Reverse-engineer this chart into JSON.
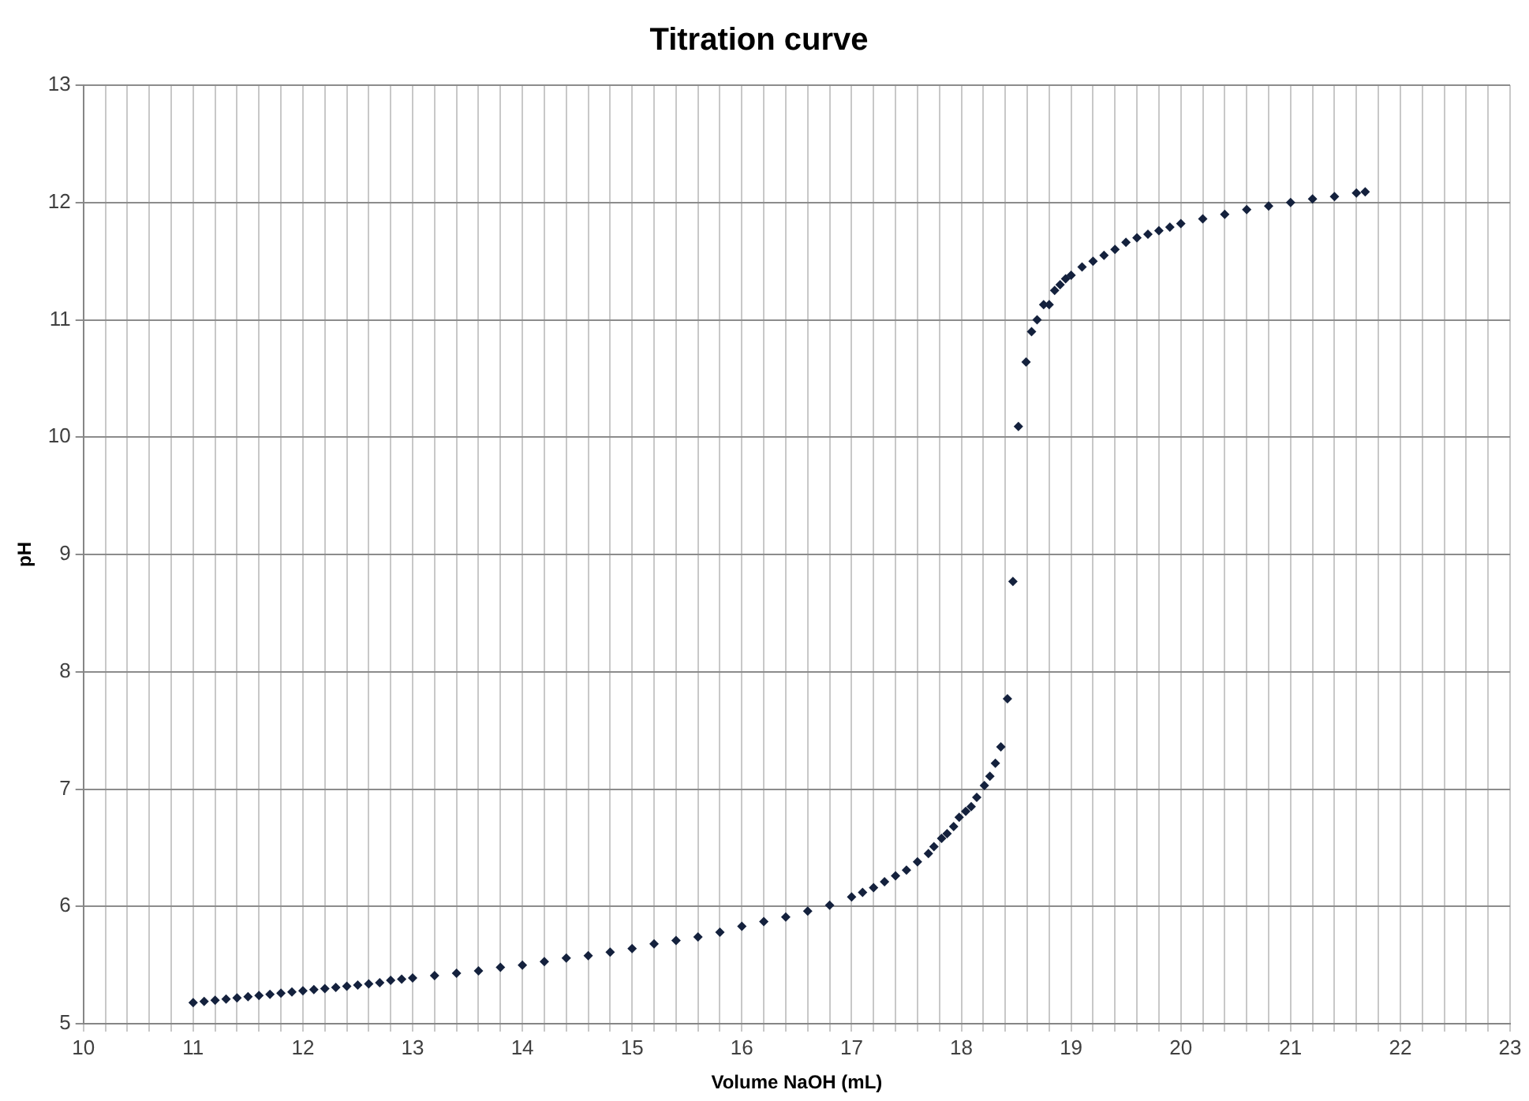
{
  "chart_data": {
    "type": "scatter",
    "title": "Titration curve",
    "xlabel": "Volume NaOH (mL)",
    "ylabel": "pH",
    "xlim": [
      10,
      23
    ],
    "ylim": [
      5,
      13
    ],
    "xticks": [
      10,
      {
        "value": 10.2,
        "label": null
      },
      {
        "value": 10.4,
        "label": null
      },
      {
        "value": 10.6,
        "label": null
      },
      {
        "value": 10.8,
        "label": null
      },
      11,
      {
        "value": 11.2,
        "label": null
      },
      {
        "value": 11.4,
        "label": null
      },
      {
        "value": 11.6,
        "label": null
      },
      {
        "value": 11.8,
        "label": null
      },
      12,
      {
        "value": 12.2,
        "label": null
      },
      {
        "value": 12.4,
        "label": null
      },
      {
        "value": 12.6,
        "label": null
      },
      {
        "value": 12.8,
        "label": null
      },
      13,
      {
        "value": 13.2,
        "label": null
      },
      {
        "value": 13.4,
        "label": null
      },
      {
        "value": 13.6,
        "label": null
      },
      {
        "value": 13.8,
        "label": null
      },
      14,
      {
        "value": 14.2,
        "label": null
      },
      {
        "value": 14.4,
        "label": null
      },
      {
        "value": 14.6,
        "label": null
      },
      {
        "value": 14.8,
        "label": null
      },
      15,
      {
        "value": 15.2,
        "label": null
      },
      {
        "value": 15.4,
        "label": null
      },
      {
        "value": 15.6,
        "label": null
      },
      {
        "value": 15.8,
        "label": null
      },
      16,
      {
        "value": 16.2,
        "label": null
      },
      {
        "value": 16.4,
        "label": null
      },
      {
        "value": 16.6,
        "label": null
      },
      {
        "value": 16.8,
        "label": null
      },
      17,
      {
        "value": 17.2,
        "label": null
      },
      {
        "value": 17.4,
        "label": null
      },
      {
        "value": 17.6,
        "label": null
      },
      {
        "value": 17.8,
        "label": null
      },
      18,
      {
        "value": 18.2,
        "label": null
      },
      {
        "value": 18.4,
        "label": null
      },
      {
        "value": 18.6,
        "label": null
      },
      {
        "value": 18.8,
        "label": null
      },
      19,
      {
        "value": 19.2,
        "label": null
      },
      {
        "value": 19.4,
        "label": null
      },
      {
        "value": 19.6,
        "label": null
      },
      {
        "value": 19.8,
        "label": null
      },
      20,
      {
        "value": 20.2,
        "label": null
      },
      {
        "value": 20.4,
        "label": null
      },
      {
        "value": 20.6,
        "label": null
      },
      {
        "value": 20.8,
        "label": null
      },
      21,
      {
        "value": 21.2,
        "label": null
      },
      {
        "value": 21.4,
        "label": null
      },
      {
        "value": 21.6,
        "label": null
      },
      {
        "value": 21.8,
        "label": null
      },
      22,
      {
        "value": 22.2,
        "label": null
      },
      {
        "value": 22.4,
        "label": null
      },
      {
        "value": 22.6,
        "label": null
      },
      {
        "value": 22.8,
        "label": null
      },
      23
    ],
    "yticks": [
      5,
      6,
      7,
      8,
      9,
      10,
      11,
      12,
      13
    ],
    "grid": true,
    "legend": false,
    "marker": "diamond",
    "x": [
      11.0,
      11.1,
      11.2,
      11.3,
      11.4,
      11.5,
      11.6,
      11.7,
      11.8,
      11.9,
      12.0,
      12.1,
      12.2,
      12.3,
      12.4,
      12.5,
      12.6,
      12.7,
      12.8,
      12.9,
      13.0,
      13.2,
      13.4,
      13.6,
      13.8,
      14.0,
      14.2,
      14.4,
      14.6,
      14.8,
      15.0,
      15.2,
      15.4,
      15.6,
      15.8,
      16.0,
      16.2,
      16.4,
      16.6,
      16.8,
      17.0,
      17.1,
      17.2,
      17.3,
      17.4,
      17.5,
      17.6,
      17.7,
      17.75,
      17.82,
      17.87,
      17.93,
      17.98,
      18.04,
      18.09,
      18.14,
      18.21,
      18.26,
      18.31,
      18.36,
      18.42,
      18.47,
      18.52,
      18.59,
      18.64,
      18.69,
      18.75,
      18.8,
      18.85,
      18.9,
      18.95,
      19.0,
      19.1,
      19.2,
      19.3,
      19.4,
      19.5,
      19.6,
      19.7,
      19.8,
      19.9,
      20.0,
      20.2,
      20.4,
      20.6,
      20.8,
      21.0,
      21.2,
      21.4,
      21.6,
      21.68
    ],
    "series": [
      {
        "color": "#14213d",
        "values": [
          5.18,
          5.19,
          5.2,
          5.21,
          5.22,
          5.23,
          5.24,
          5.25,
          5.26,
          5.27,
          5.28,
          5.29,
          5.3,
          5.31,
          5.32,
          5.33,
          5.34,
          5.35,
          5.37,
          5.38,
          5.39,
          5.41,
          5.43,
          5.45,
          5.48,
          5.5,
          5.53,
          5.56,
          5.58,
          5.61,
          5.64,
          5.68,
          5.71,
          5.74,
          5.78,
          5.83,
          5.87,
          5.91,
          5.96,
          6.01,
          6.08,
          6.12,
          6.16,
          6.21,
          6.26,
          6.31,
          6.38,
          6.45,
          6.51,
          6.58,
          6.62,
          6.68,
          6.76,
          6.81,
          6.85,
          6.93,
          7.03,
          7.11,
          7.22,
          7.36,
          7.77,
          8.77,
          10.09,
          10.64,
          10.9,
          11.0,
          11.13,
          11.13,
          11.25,
          11.3,
          11.35,
          11.38,
          11.45,
          11.5,
          11.55,
          11.6,
          11.66,
          11.7,
          11.73,
          11.76,
          11.79,
          11.82,
          11.86,
          11.9,
          11.94,
          11.97,
          12.0,
          12.03,
          12.05,
          12.08,
          12.09
        ]
      }
    ]
  }
}
